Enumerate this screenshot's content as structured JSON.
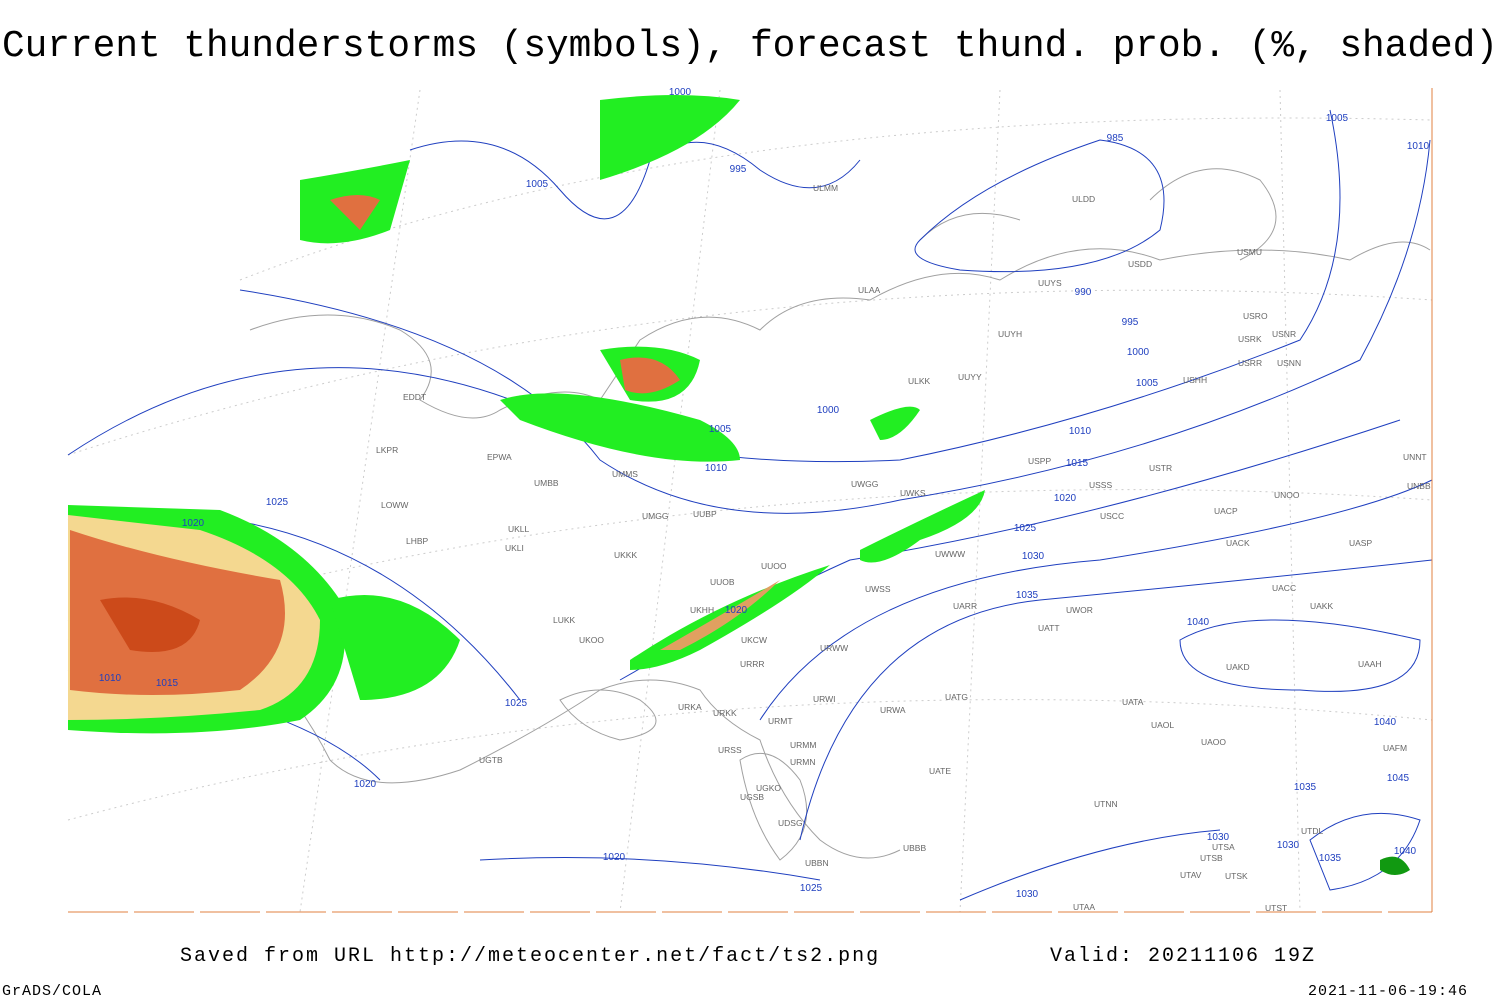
{
  "header": {
    "title": "Current thunderstorms (symbols), forecast thund. prob. (%, shaded)"
  },
  "map": {
    "isobar_labels": [
      1000,
      1005,
      995,
      985,
      990,
      995,
      1000,
      1005,
      1000,
      1005,
      1010,
      1010,
      1015,
      1020,
      1025,
      1030,
      1035,
      1040,
      1020,
      1025,
      1025,
      1020,
      1010,
      1015,
      1020,
      1020,
      1025,
      1030,
      1030,
      1035,
      1040,
      1045,
      1040,
      1005,
      1010,
      1030,
      1035
    ],
    "stations": [
      "ULMM",
      "ULDD",
      "USDD",
      "USMU",
      "UUYS",
      "ULAA",
      "USRO",
      "USRK",
      "USNR",
      "USRR",
      "USNN",
      "ULKK",
      "UUYY",
      "UUYH",
      "USHH",
      "EDDT",
      "EPWA",
      "LKPR",
      "LOWW",
      "LHBP",
      "UKLL",
      "UKLI",
      "UKKK",
      "UUOB",
      "UUOO",
      "UKHH",
      "LUKK",
      "UKOO",
      "URRR",
      "UKCW",
      "URKA",
      "URKK",
      "URMT",
      "URMM",
      "URMN",
      "URSS",
      "UGTB",
      "UGSB",
      "UBBB",
      "URWI",
      "URWA",
      "UATG",
      "UATA",
      "UAOL",
      "UAOO",
      "UTNN",
      "UTAA",
      "UATE",
      "UATT",
      "UWOR",
      "UARR",
      "UACC",
      "UAKK",
      "UAKD",
      "UAAH",
      "UASP",
      "UACK",
      "UACP",
      "UNOO",
      "USCC",
      "USTR",
      "USSS",
      "USPP",
      "UNNT",
      "UNBB",
      "UWGG",
      "UWKS",
      "UMMS",
      "UMBB",
      "UMGG",
      "UUBP",
      "UWWW",
      "UWSS",
      "URWW",
      "UTDL",
      "UTSA",
      "UTSB",
      "UTAV",
      "UTSK",
      "UTST",
      "UAFM",
      "UBBN",
      "UDSG",
      "UGKO"
    ]
  },
  "footer": {
    "source": "Saved from URL http://meteocenter.net/fact/ts2.png",
    "valid": "Valid: 20211106 19Z",
    "software": "GrADS/COLA",
    "timestamp": "2021-11-06-19:46"
  }
}
